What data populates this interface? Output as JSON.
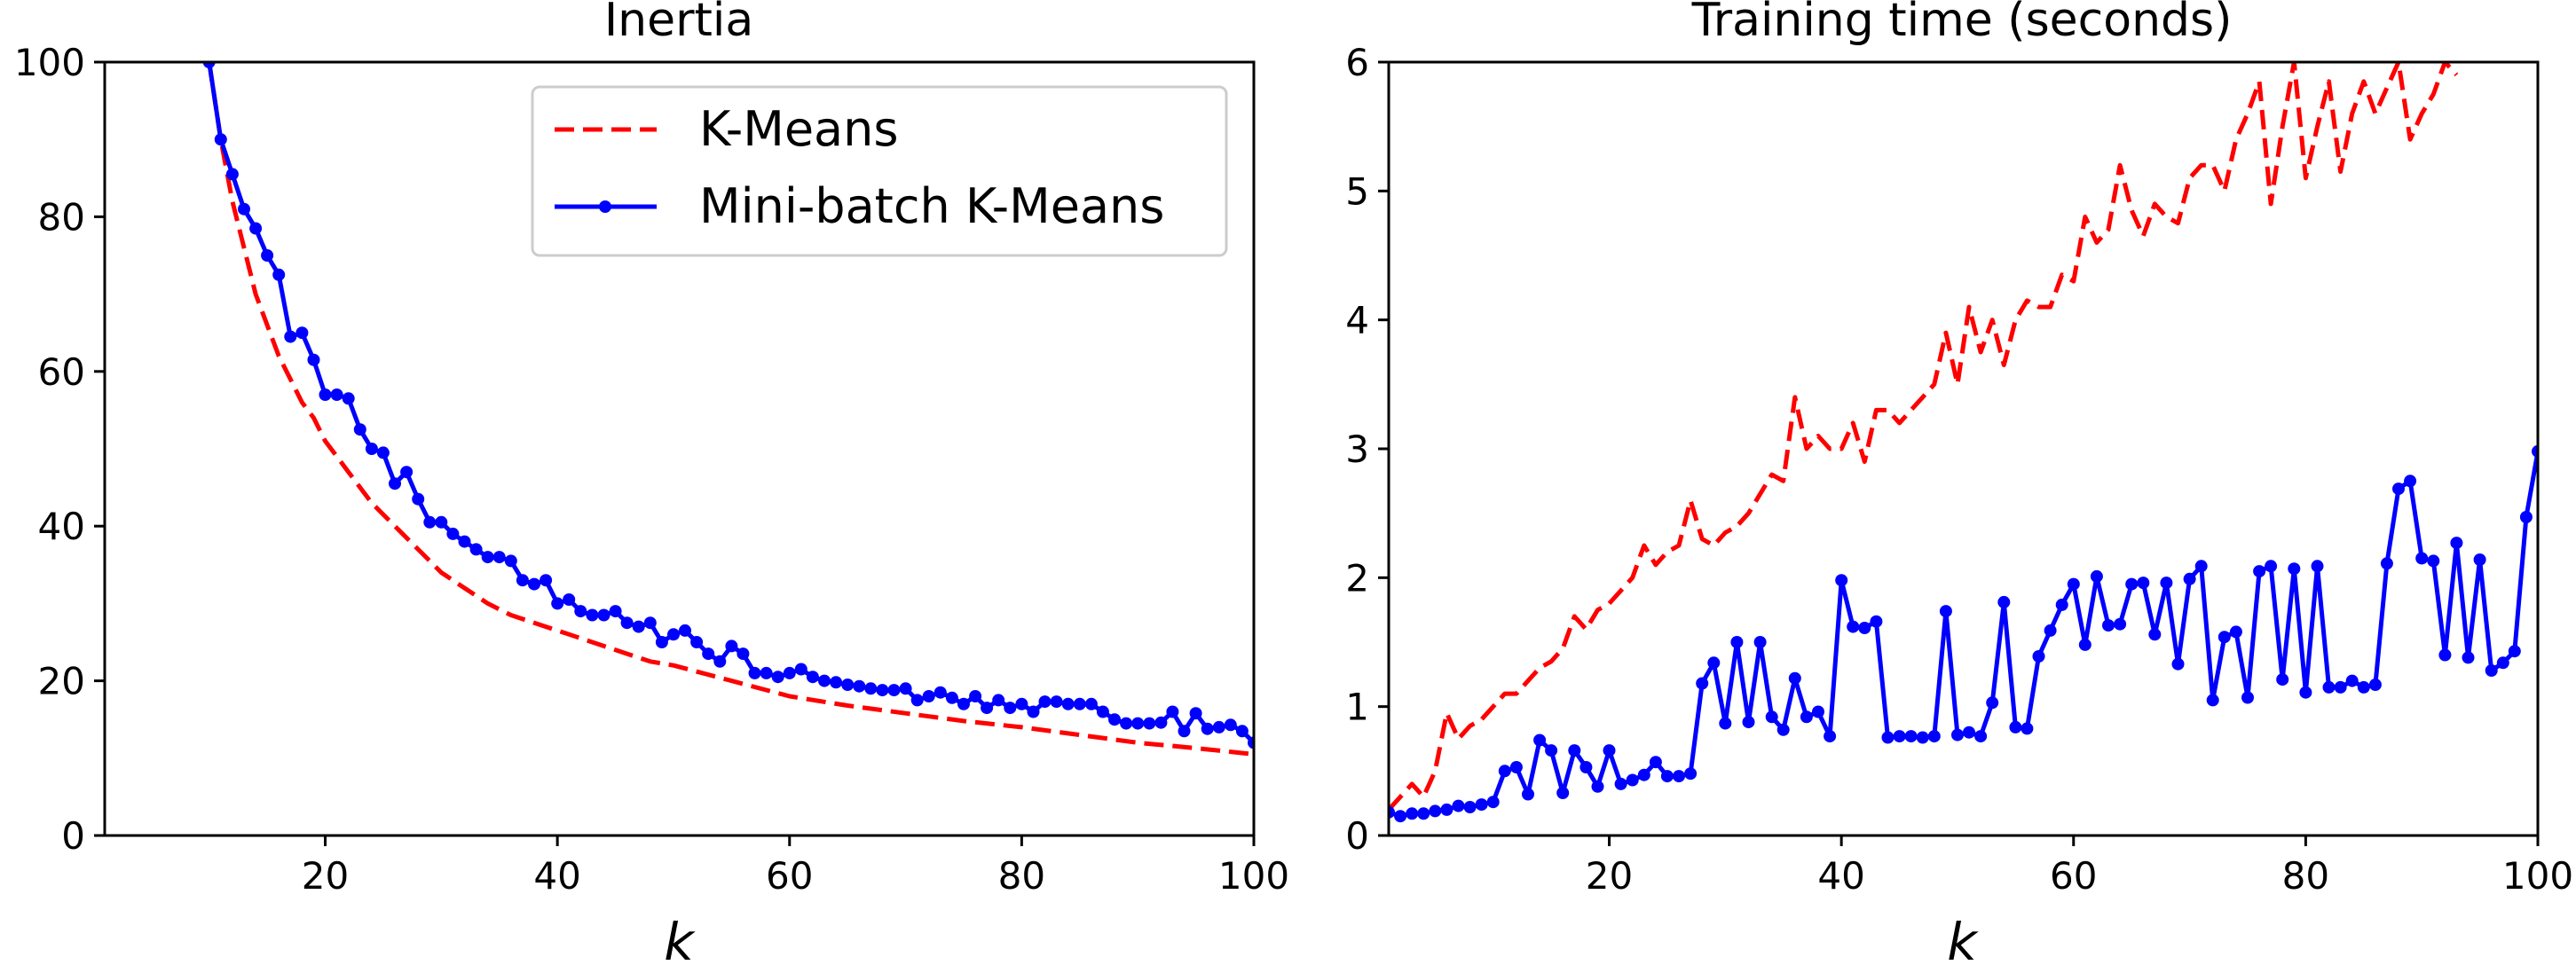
{
  "chart_data": [
    {
      "type": "line",
      "title": "Inertia",
      "xlabel": "k",
      "ylabel": "",
      "xlim": [
        1,
        100
      ],
      "ylim": [
        0,
        100
      ],
      "xticks": [
        20,
        40,
        60,
        80,
        100
      ],
      "yticks": [
        0,
        20,
        40,
        60,
        80,
        100
      ],
      "legend": {
        "placement": "top-right",
        "entries": [
          "K-Means",
          "Mini-batch K-Means"
        ]
      },
      "series": [
        {
          "name": "K-Means",
          "color": "#ff0000",
          "style": "dashed",
          "x": [
            10,
            11,
            12,
            13,
            14,
            15,
            16,
            17,
            18,
            19,
            20,
            21,
            22,
            23,
            24,
            25,
            26,
            27,
            28,
            29,
            30,
            32,
            34,
            36,
            38,
            40,
            42,
            44,
            46,
            48,
            50,
            55,
            60,
            65,
            70,
            75,
            80,
            85,
            90,
            95,
            100
          ],
          "y": [
            100,
            90,
            82,
            76,
            70,
            66,
            62,
            59,
            56,
            54,
            51,
            49,
            47,
            45,
            43,
            41.5,
            40,
            38.5,
            37,
            35.5,
            34,
            32,
            30,
            28.5,
            27.5,
            26.5,
            25.5,
            24.5,
            23.5,
            22.5,
            22,
            20,
            18,
            16.8,
            15.8,
            14.8,
            14,
            13,
            12,
            11.3,
            10.5
          ]
        },
        {
          "name": "Mini-batch K-Means",
          "color": "#0000ff",
          "style": "solid-dots",
          "x": [
            10,
            11,
            12,
            13,
            14,
            15,
            16,
            17,
            18,
            19,
            20,
            21,
            22,
            23,
            24,
            25,
            26,
            27,
            28,
            29,
            30,
            31,
            32,
            33,
            34,
            35,
            36,
            37,
            38,
            39,
            40,
            41,
            42,
            43,
            44,
            45,
            46,
            47,
            48,
            49,
            50,
            51,
            52,
            53,
            54,
            55,
            56,
            57,
            58,
            59,
            60,
            61,
            62,
            63,
            64,
            65,
            66,
            67,
            68,
            69,
            70,
            71,
            72,
            73,
            74,
            75,
            76,
            77,
            78,
            79,
            80,
            81,
            82,
            83,
            84,
            85,
            86,
            87,
            88,
            89,
            90,
            91,
            92,
            93,
            94,
            95,
            96,
            97,
            98,
            99,
            100
          ],
          "y": [
            100,
            90,
            85.5,
            81,
            78.5,
            75,
            72.5,
            64.5,
            65,
            61.5,
            57,
            57,
            56.5,
            52.5,
            50,
            49.5,
            45.5,
            47,
            43.5,
            40.5,
            40.5,
            39,
            38,
            37,
            36,
            36,
            35.5,
            33,
            32.5,
            33,
            30,
            30.5,
            29,
            28.5,
            28.5,
            29,
            27.5,
            27,
            27.5,
            25,
            26,
            26.5,
            25,
            23.5,
            22.5,
            24.5,
            23.5,
            21,
            21,
            20.5,
            21,
            21.5,
            20.5,
            20,
            19.8,
            19.5,
            19.3,
            19,
            18.8,
            18.8,
            19,
            17.5,
            18,
            18.5,
            17.8,
            17,
            18,
            16.5,
            17.5,
            16.5,
            17,
            16,
            17.3,
            17.3,
            17,
            17,
            17,
            16,
            15,
            14.5,
            14.5,
            14.5,
            14.6,
            16,
            13.5,
            15.8,
            13.8,
            14,
            14.3,
            13.5,
            12
          ]
        }
      ]
    },
    {
      "type": "line",
      "title": "Training time (seconds)",
      "xlabel": "k",
      "ylabel": "",
      "xlim": [
        1,
        100
      ],
      "ylim": [
        0,
        6
      ],
      "xticks": [
        20,
        40,
        60,
        80,
        100
      ],
      "yticks": [
        0,
        1,
        2,
        3,
        4,
        5,
        6
      ],
      "series": [
        {
          "name": "K-Means",
          "color": "#ff0000",
          "style": "dashed",
          "x": [
            1,
            2,
            3,
            4,
            5,
            6,
            7,
            8,
            9,
            10,
            11,
            12,
            13,
            14,
            15,
            16,
            17,
            18,
            19,
            20,
            21,
            22,
            23,
            24,
            25,
            26,
            27,
            28,
            29,
            30,
            31,
            32,
            33,
            34,
            35,
            36,
            37,
            38,
            39,
            40,
            41,
            42,
            43,
            44,
            45,
            46,
            47,
            48,
            49,
            50,
            51,
            52,
            53,
            54,
            55,
            56,
            57,
            58,
            59,
            60,
            61,
            62,
            63,
            64,
            65,
            66,
            67,
            68,
            69,
            70,
            71,
            72,
            73,
            74,
            75,
            76,
            77,
            78,
            79,
            80,
            81,
            82,
            83,
            84,
            85,
            86,
            87,
            88,
            89,
            90,
            91,
            92,
            93
          ],
          "y": [
            0.2,
            0.3,
            0.4,
            0.3,
            0.5,
            0.95,
            0.75,
            0.85,
            0.9,
            1.0,
            1.1,
            1.1,
            1.2,
            1.3,
            1.35,
            1.45,
            1.7,
            1.6,
            1.75,
            1.8,
            1.9,
            2.0,
            2.25,
            2.1,
            2.2,
            2.25,
            2.6,
            2.3,
            2.25,
            2.35,
            2.4,
            2.5,
            2.65,
            2.8,
            2.75,
            3.4,
            3.0,
            3.1,
            3.0,
            3.0,
            3.2,
            2.9,
            3.3,
            3.3,
            3.2,
            3.3,
            3.4,
            3.5,
            3.9,
            3.5,
            4.1,
            3.75,
            4.0,
            3.65,
            4.0,
            4.15,
            4.1,
            4.1,
            4.35,
            4.3,
            4.8,
            4.6,
            4.7,
            5.2,
            4.85,
            4.65,
            4.9,
            4.8,
            4.75,
            5.1,
            5.2,
            5.2,
            5.0,
            5.4,
            5.6,
            5.85,
            4.9,
            5.5,
            6.0,
            5.1,
            5.5,
            5.85,
            5.15,
            5.6,
            5.85,
            5.6,
            5.8,
            6.0,
            5.4,
            5.6,
            5.75,
            6.0,
            5.9
          ]
        },
        {
          "name": "Mini-batch K-Means",
          "color": "#0000ff",
          "style": "solid-dots",
          "x": [
            1,
            2,
            3,
            4,
            5,
            6,
            7,
            8,
            9,
            10,
            11,
            12,
            13,
            14,
            15,
            16,
            17,
            18,
            19,
            20,
            21,
            22,
            23,
            24,
            25,
            26,
            27,
            28,
            29,
            30,
            31,
            32,
            33,
            34,
            35,
            36,
            37,
            38,
            39,
            40,
            41,
            42,
            43,
            44,
            45,
            46,
            47,
            48,
            49,
            50,
            51,
            52,
            53,
            54,
            55,
            56,
            57,
            58,
            59,
            60,
            61,
            62,
            63,
            64,
            65,
            66,
            67,
            68,
            69,
            70,
            71,
            72,
            73,
            74,
            75,
            76,
            77,
            78,
            79,
            80,
            81,
            82,
            83,
            84,
            85,
            86,
            87,
            88,
            89,
            90,
            91,
            92,
            93,
            94,
            95,
            96,
            97,
            98,
            99,
            100
          ],
          "y": [
            0.18,
            0.15,
            0.17,
            0.17,
            0.19,
            0.2,
            0.23,
            0.22,
            0.24,
            0.26,
            0.5,
            0.53,
            0.32,
            0.74,
            0.66,
            0.33,
            0.66,
            0.53,
            0.38,
            0.66,
            0.4,
            0.43,
            0.47,
            0.57,
            0.46,
            0.46,
            0.48,
            1.18,
            1.34,
            0.87,
            1.5,
            0.88,
            1.5,
            0.92,
            0.82,
            1.22,
            0.92,
            0.96,
            0.77,
            1.98,
            1.62,
            1.61,
            1.66,
            0.76,
            0.77,
            0.77,
            0.76,
            0.77,
            1.74,
            0.78,
            0.8,
            0.77,
            1.03,
            1.81,
            0.84,
            0.83,
            1.39,
            1.59,
            1.79,
            1.95,
            1.48,
            2.01,
            1.63,
            1.64,
            1.95,
            1.96,
            1.56,
            1.96,
            1.33,
            1.99,
            2.09,
            1.05,
            1.54,
            1.58,
            1.07,
            2.05,
            2.09,
            1.21,
            2.07,
            1.11,
            2.09,
            1.15,
            1.15,
            1.2,
            1.15,
            1.17,
            2.11,
            2.69,
            2.75,
            2.15,
            2.13,
            1.4,
            2.27,
            1.38,
            2.14,
            1.28,
            1.34,
            1.43,
            2.47,
            2.98
          ]
        }
      ]
    }
  ]
}
